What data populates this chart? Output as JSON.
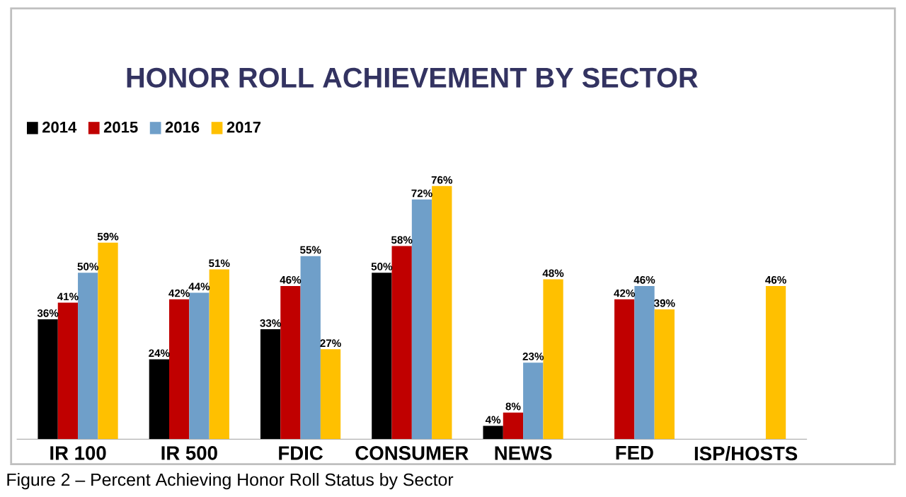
{
  "chart_data": {
    "type": "bar",
    "title": "HONOR ROLL ACHIEVEMENT BY SECTOR",
    "categories": [
      "IR 100",
      "IR 500",
      "FDIC",
      "CONSUMER",
      "NEWS",
      "FED",
      "ISP/HOSTS"
    ],
    "series": [
      {
        "name": "2014",
        "color": "#000000",
        "values": [
          36,
          24,
          33,
          50,
          4,
          null,
          null
        ],
        "value_labels": [
          "36%",
          "24%",
          "33%",
          "50%",
          "4%",
          null,
          null
        ]
      },
      {
        "name": "2015",
        "color": "#c00000",
        "values": [
          41,
          42,
          46,
          58,
          8,
          42,
          null
        ],
        "value_labels": [
          "41%",
          "42%",
          "46%",
          "58%",
          "8%",
          "42%",
          null
        ]
      },
      {
        "name": "2016",
        "color": "#6f9fc9",
        "values": [
          50,
          44,
          55,
          72,
          23,
          46,
          null
        ],
        "value_labels": [
          "50%",
          "44%",
          "55%",
          "72%",
          "23%",
          "46%",
          null
        ]
      },
      {
        "name": "2017",
        "color": "#ffc000",
        "values": [
          59,
          51,
          27,
          76,
          48,
          39,
          46
        ],
        "value_labels": [
          "59%",
          "51%",
          "27%",
          "76%",
          "48%",
          "39%",
          "46%"
        ]
      }
    ],
    "legend": "top left",
    "annotations": [
      "Figure 2 – Percent Achieving Honor Roll Status by Sector"
    ]
  }
}
